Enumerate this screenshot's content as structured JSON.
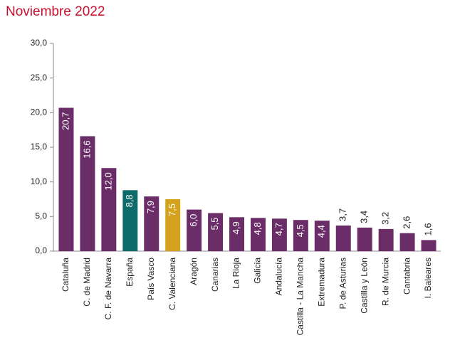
{
  "chart_data": {
    "type": "bar",
    "title": "Noviembre 2022",
    "categories": [
      "Cataluña",
      "C. de Madrid",
      "C. F. de Navarra",
      "España",
      "País Vasco",
      "C. Valenciana",
      "Aragón",
      "Canarias",
      "La Rioja",
      "Galicia",
      "Andalucía",
      "Castilla - La Mancha",
      "Extremadura",
      "P. de Asturias",
      "Castilla y León",
      "R. de Murcia",
      "Cantabria",
      "I. Baleares"
    ],
    "values": [
      20.7,
      16.6,
      12.0,
      8.8,
      7.9,
      7.5,
      6.0,
      5.5,
      4.9,
      4.8,
      4.7,
      4.5,
      4.4,
      3.7,
      3.4,
      3.2,
      2.6,
      1.6
    ],
    "value_labels": [
      "20,7",
      "16,6",
      "12,0",
      "8,8",
      "7,9",
      "7,5",
      "6,0",
      "5,5",
      "4,9",
      "4,8",
      "4,7",
      "4,5",
      "4,4",
      "3,7",
      "3,4",
      "3,2",
      "2,6",
      "1,6"
    ],
    "colors": [
      "#6a2d68",
      "#6a2d68",
      "#6a2d68",
      "#0d6b6b",
      "#6a2d68",
      "#d4a21c",
      "#6a2d68",
      "#6a2d68",
      "#6a2d68",
      "#6a2d68",
      "#6a2d68",
      "#6a2d68",
      "#6a2d68",
      "#6a2d68",
      "#6a2d68",
      "#6a2d68",
      "#6a2d68",
      "#6a2d68"
    ],
    "ylim": [
      0,
      30
    ],
    "yticks": [
      {
        "value": 0,
        "label": "0,0"
      },
      {
        "value": 5,
        "label": "5,0"
      },
      {
        "value": 10,
        "label": "10,0"
      },
      {
        "value": 15,
        "label": "15,0"
      },
      {
        "value": 20,
        "label": "20,0"
      },
      {
        "value": 25,
        "label": "25,0"
      },
      {
        "value": 30,
        "label": "30,0"
      }
    ],
    "grid": false
  }
}
